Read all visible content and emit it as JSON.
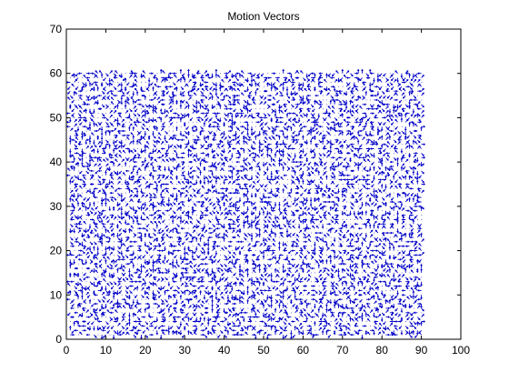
{
  "chart_data": {
    "type": "quiver",
    "title": "Motion Vectors",
    "xlabel": "",
    "ylabel": "",
    "xlim": [
      0,
      100
    ],
    "ylim": [
      0,
      70
    ],
    "xticks": [
      "0",
      "10",
      "20",
      "30",
      "40",
      "50",
      "60",
      "70",
      "80",
      "90",
      "100"
    ],
    "yticks": [
      "0",
      "10",
      "20",
      "30",
      "40",
      "50",
      "60",
      "70"
    ],
    "grid": false,
    "vector_color": "#0000c8",
    "field_x_range": [
      1,
      90
    ],
    "field_y_range": [
      1,
      60
    ],
    "vector_components": [
      -1,
      0,
      1
    ]
  }
}
